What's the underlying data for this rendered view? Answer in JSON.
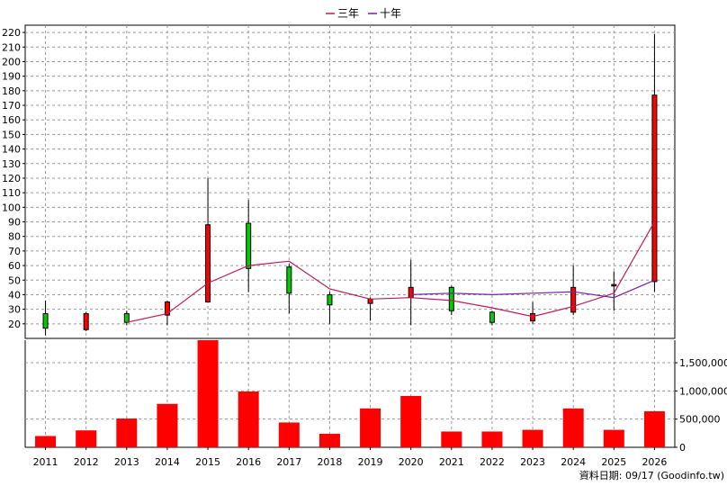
{
  "legend": [
    {
      "name": "三年",
      "color": "#c2185b"
    },
    {
      "name": "十年",
      "color": "#7b1fa2"
    }
  ],
  "source_label": "資料日期: 09/17  (Goodinfo.tw)",
  "chart_data": [
    {
      "type": "candlestick",
      "categories": [
        "2011",
        "2012",
        "2013",
        "2014",
        "2015",
        "2016",
        "2017",
        "2018",
        "2019",
        "2020",
        "2021",
        "2022",
        "2023",
        "2024",
        "2025",
        "2026"
      ],
      "ylim": [
        10,
        225
      ],
      "y_ticks": [
        20,
        30,
        40,
        50,
        60,
        70,
        80,
        90,
        100,
        110,
        120,
        130,
        140,
        150,
        160,
        170,
        180,
        190,
        200,
        210,
        220
      ],
      "grid": true,
      "up_color": "#ff0000",
      "down_color": "#00cc00",
      "candles": [
        {
          "year": "2011",
          "open": 27,
          "close": 17,
          "high": 36,
          "low": 12
        },
        {
          "year": "2012",
          "open": 16,
          "close": 27,
          "high": 28,
          "low": 15
        },
        {
          "year": "2013",
          "open": 27,
          "close": 21,
          "high": 29,
          "low": 19
        },
        {
          "year": "2014",
          "open": 26,
          "close": 35,
          "high": 36,
          "low": 19
        },
        {
          "year": "2015",
          "open": 35,
          "close": 88,
          "high": 120,
          "low": 35
        },
        {
          "year": "2016",
          "open": 89,
          "close": 58,
          "high": 105,
          "low": 42
        },
        {
          "year": "2017",
          "open": 59,
          "close": 41,
          "high": 61,
          "low": 27
        },
        {
          "year": "2018",
          "open": 40,
          "close": 33,
          "high": 42,
          "low": 20
        },
        {
          "year": "2019",
          "open": 34,
          "close": 37,
          "high": 38,
          "low": 22
        },
        {
          "year": "2020",
          "open": 38,
          "close": 45,
          "high": 64,
          "low": 19
        },
        {
          "year": "2021",
          "open": 45,
          "close": 29,
          "high": 46,
          "low": 26
        },
        {
          "year": "2022",
          "open": 28,
          "close": 21,
          "high": 29,
          "low": 19
        },
        {
          "year": "2023",
          "open": 22,
          "close": 27,
          "high": 35,
          "low": 20
        },
        {
          "year": "2024",
          "open": 28,
          "close": 45,
          "high": 60,
          "low": 26
        },
        {
          "year": "2025",
          "open": 46,
          "close": 47,
          "high": 56,
          "low": 29
        },
        {
          "year": "2026",
          "open": 49,
          "close": 177,
          "high": 219,
          "low": 42
        }
      ],
      "series": [
        {
          "name": "三年",
          "color": "#c2185b",
          "values": [
            null,
            null,
            21,
            27,
            48,
            60,
            63,
            44,
            37,
            38,
            36,
            31,
            25,
            32,
            41,
            90
          ]
        },
        {
          "name": "十年",
          "color": "#7b1fa2",
          "values": [
            null,
            null,
            null,
            null,
            null,
            null,
            null,
            null,
            null,
            40,
            41,
            40,
            41,
            42,
            38,
            50
          ]
        }
      ]
    },
    {
      "type": "bar",
      "categories": [
        "2011",
        "2012",
        "2013",
        "2014",
        "2015",
        "2016",
        "2017",
        "2018",
        "2019",
        "2020",
        "2021",
        "2022",
        "2023",
        "2024",
        "2025",
        "2026"
      ],
      "values": [
        200000,
        300000,
        510000,
        770000,
        1900000,
        990000,
        440000,
        240000,
        690000,
        910000,
        280000,
        280000,
        310000,
        690000,
        310000,
        640000
      ],
      "ylim": [
        0,
        1900000
      ],
      "y_ticks": [
        0,
        500000,
        1000000,
        1500000
      ],
      "y_tick_labels": [
        "0",
        "500,000",
        "1,000,000",
        "1,500,000"
      ],
      "bar_color": "#ff0000",
      "grid": true
    }
  ]
}
